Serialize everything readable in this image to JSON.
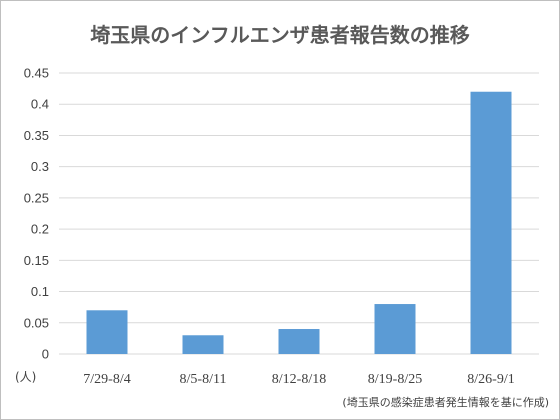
{
  "chart_data": {
    "type": "bar",
    "title": "埼玉県のインフルエンザ患者報告数の推移",
    "xlabel": "",
    "ylabel": "",
    "unit_label": "(人)",
    "source_note": "(埼玉県の感染症患者発生情報を基に作成)",
    "categories": [
      "7/29-8/4",
      "8/5-8/11",
      "8/12-8/18",
      "8/19-8/25",
      "8/26-9/1"
    ],
    "values": [
      0.07,
      0.03,
      0.04,
      0.08,
      0.42
    ],
    "ylim": [
      0,
      0.45
    ],
    "yticks": [
      "0",
      "0.05",
      "0.1",
      "0.15",
      "0.2",
      "0.25",
      "0.3",
      "0.35",
      "0.4",
      "0.45"
    ],
    "grid": true,
    "legend": "none",
    "colors": {
      "bar": "#5b9bd5",
      "grid": "#d9d9d9",
      "text": "#404040",
      "title": "#595959"
    }
  }
}
